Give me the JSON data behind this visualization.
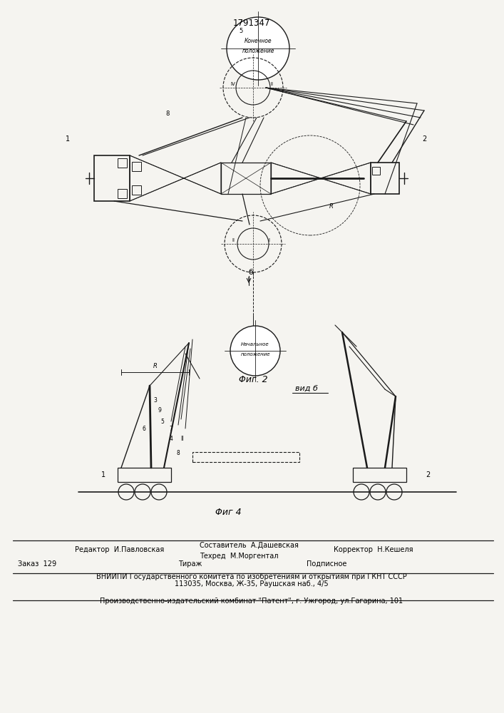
{
  "patent_number": "1791347",
  "fig2_label": "Φиг. 2",
  "fig4_label": "Φиг 4",
  "vid_b_label": "вид б",
  "background_color": "#f5f4f0",
  "line_color": "#1a1a1a",
  "footer": {
    "editor_label": "Редактор  И.Павловская",
    "composer_label": "Составитель  А.Дашевская",
    "techred_label": "Техред  М.Моргентал",
    "corrector_label": "Корректор  Н.Кешеля",
    "order_label": "Заказ  129",
    "tirazh_label": "Тираж",
    "podpisnoe_label": "Подписное",
    "vniiipi_line": "ВНИИПИ Государственного комитета по изобретениям и открытиям при ГКНТ СССР",
    "address_line": "113035, Москва, Ж-35, Раушская наб., 4/5",
    "publisher_line": "Производственно-издательский комбинат \"Патент\", г. Ужгород, ул.Гагарина, 101"
  }
}
